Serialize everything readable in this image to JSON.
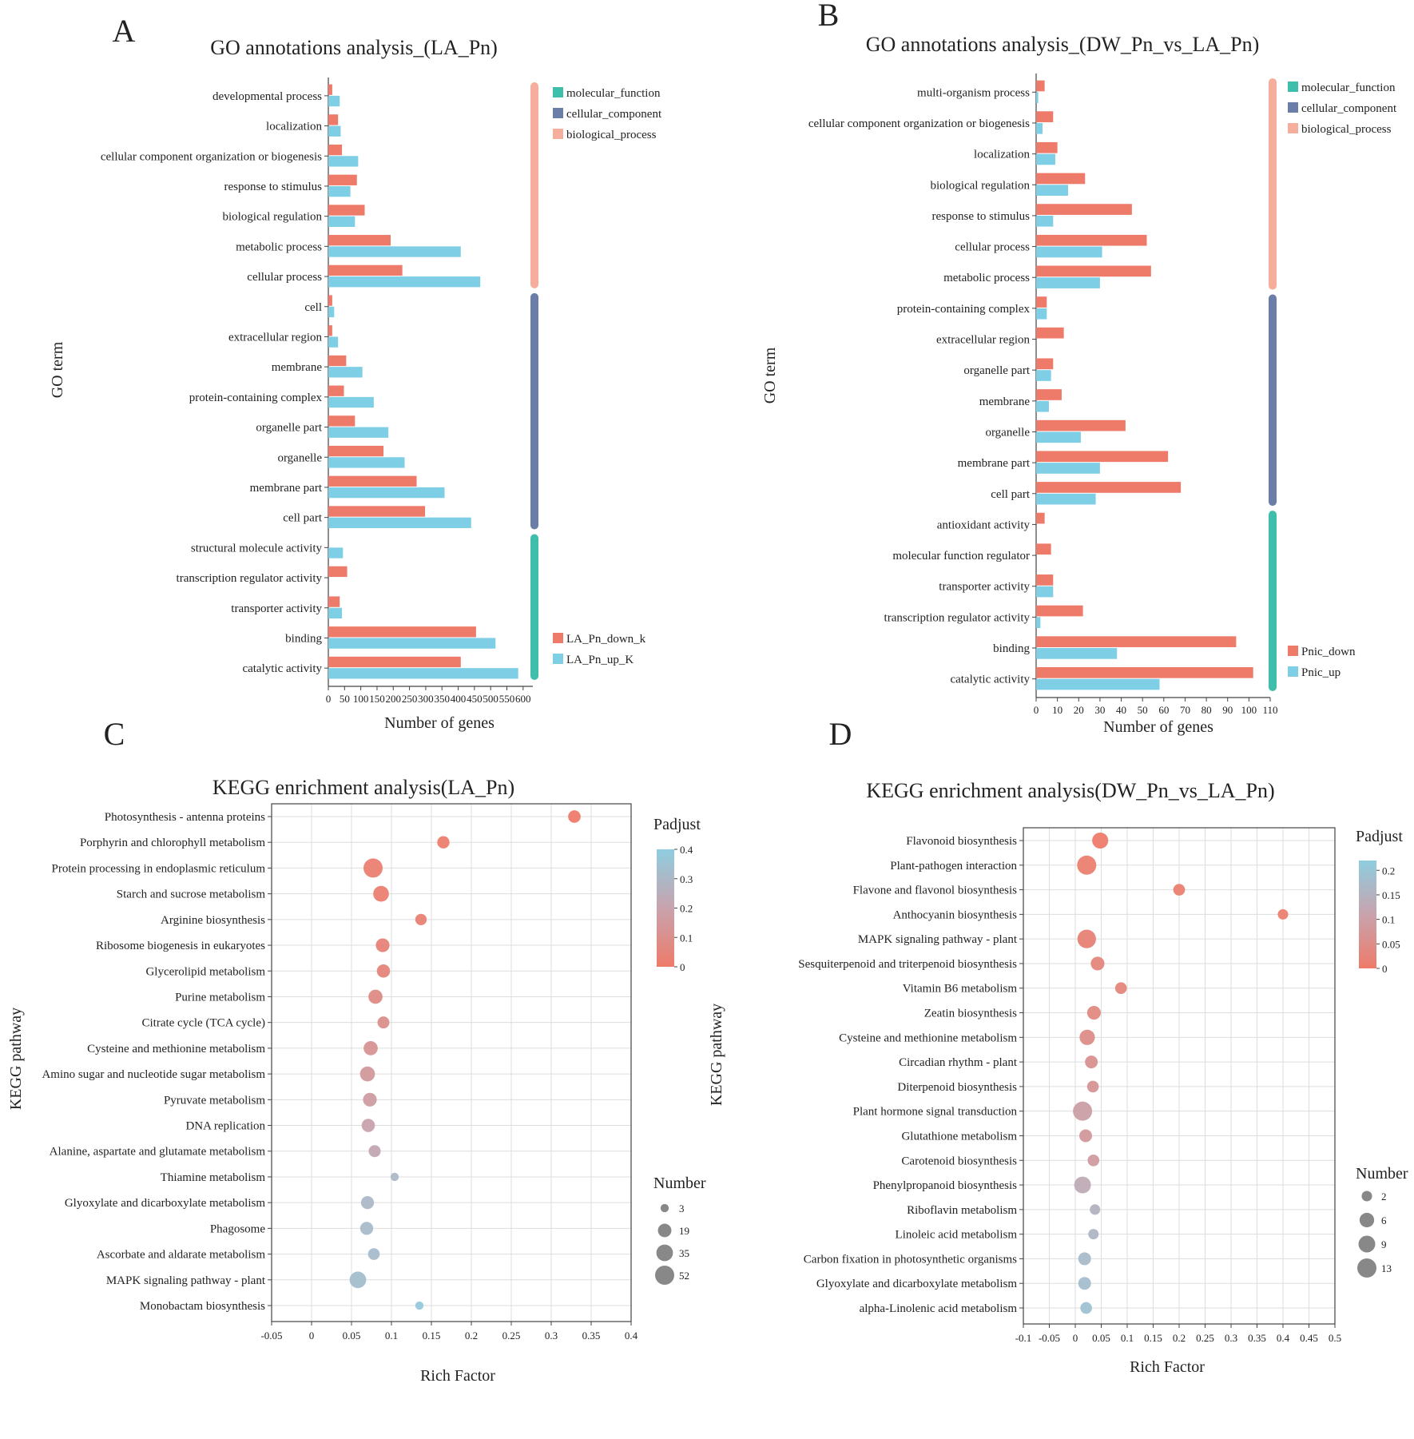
{
  "figure": {
    "background": "#ffffff"
  },
  "colors": {
    "down": "#ee7b6a",
    "up": "#7ecfe6",
    "molecular_function": "#3fbfab",
    "cellular_component": "#6b7ea8",
    "biological_process": "#f5ae9c",
    "grid": "#dddddd",
    "axis": "#444444",
    "gradient_low": "#ee7b6a",
    "gradient_mid": "#c8a3ad",
    "gradient_high": "#8fcde0"
  },
  "chart_data": [
    {
      "panel": "A",
      "type": "bar",
      "title": "GO annotations analysis_(LA_Pn)",
      "ylabel": "GO term",
      "xlabel": "Number of genes",
      "xlim": [
        0,
        630
      ],
      "xticks": [
        0,
        50,
        100,
        150,
        200,
        250,
        300,
        350,
        400,
        450,
        500,
        550,
        600
      ],
      "categories": [
        "developmental process",
        "localization",
        "cellular component organization or biogenesis",
        "response to stimulus",
        "biological regulation",
        "metabolic process",
        "cellular process",
        "cell",
        "extracellular region",
        "membrane",
        "protein-containing complex",
        "organelle part",
        "organelle",
        "membrane part",
        "cell part",
        "structural molecule activity",
        "transcription regulator activity",
        "transporter activity",
        "binding",
        "catalytic activity"
      ],
      "groups": [
        {
          "name": "biological_process",
          "start": 0,
          "end": 6
        },
        {
          "name": "cellular_component",
          "start": 7,
          "end": 14
        },
        {
          "name": "molecular_function",
          "start": 15,
          "end": 19
        }
      ],
      "group_legend": [
        "molecular_function",
        "cellular_component",
        "biological_process"
      ],
      "series": [
        {
          "name": "LA_Pn_down_k",
          "key": "down",
          "values": [
            12,
            30,
            42,
            88,
            112,
            192,
            228,
            12,
            12,
            55,
            48,
            82,
            170,
            272,
            298,
            0,
            58,
            35,
            455,
            408
          ]
        },
        {
          "name": "LA_Pn_up_K",
          "key": "up",
          "values": [
            35,
            38,
            92,
            68,
            82,
            408,
            468,
            18,
            30,
            105,
            140,
            185,
            235,
            358,
            440,
            45,
            0,
            42,
            515,
            585
          ]
        }
      ]
    },
    {
      "panel": "B",
      "type": "bar",
      "title": "GO annotations analysis_(DW_Pn_vs_LA_Pn)",
      "ylabel": "GO term",
      "xlabel": "Number of genes",
      "xlim": [
        0,
        110
      ],
      "xticks": [
        0,
        10,
        20,
        30,
        40,
        50,
        60,
        70,
        80,
        90,
        100,
        110
      ],
      "categories": [
        "multi-organism process",
        "cellular component organization or biogenesis",
        "localization",
        "biological regulation",
        "response to stimulus",
        "cellular process",
        "metabolic process",
        "protein-containing complex",
        "extracellular region",
        "organelle part",
        "membrane",
        "organelle",
        "membrane part",
        "cell part",
        "antioxidant activity",
        "molecular function regulator",
        "transporter activity",
        "transcription regulator activity",
        "binding",
        "catalytic activity"
      ],
      "groups": [
        {
          "name": "biological_process",
          "start": 0,
          "end": 6
        },
        {
          "name": "cellular_component",
          "start": 7,
          "end": 13
        },
        {
          "name": "molecular_function",
          "start": 14,
          "end": 19
        }
      ],
      "group_legend": [
        "molecular_function",
        "cellular_component",
        "biological_process"
      ],
      "series": [
        {
          "name": "Pnic_down",
          "key": "down",
          "values": [
            4,
            8,
            10,
            23,
            45,
            52,
            54,
            5,
            13,
            8,
            12,
            42,
            62,
            68,
            4,
            7,
            8,
            22,
            94,
            102
          ]
        },
        {
          "name": "Pnic_up",
          "key": "up",
          "values": [
            1,
            3,
            9,
            15,
            8,
            31,
            30,
            5,
            0,
            7,
            6,
            21,
            30,
            28,
            0,
            0,
            8,
            2,
            38,
            58
          ]
        }
      ]
    },
    {
      "panel": "C",
      "type": "scatter",
      "title": "KEGG enrichment analysis(LA_Pn)",
      "ylabel": "KEGG pathway",
      "xlabel": "Rich Factor",
      "xlim": [
        -0.05,
        0.4
      ],
      "xticks": [
        -0.05,
        0,
        0.05,
        0.1,
        0.15,
        0.2,
        0.25,
        0.3,
        0.35,
        0.4
      ],
      "color_title": "Padjust",
      "color_range": [
        0,
        0.4
      ],
      "color_ticks": [
        0,
        0.1,
        0.2,
        0.3,
        0.4
      ],
      "size_title": "Number",
      "size_legend": [
        3,
        19,
        35,
        52
      ],
      "categories": [
        "Photosynthesis - antenna proteins",
        "Porphyrin and chlorophyll metabolism",
        "Protein processing in endoplasmic reticulum",
        "Starch and sucrose metabolism",
        "Arginine biosynthesis",
        "Ribosome biogenesis in eukaryotes",
        "Glycerolipid metabolism",
        "Purine metabolism",
        "Citrate cycle (TCA cycle)",
        "Cysteine and methionine metabolism",
        "Amino sugar and nucleotide sugar metabolism",
        "Pyruvate metabolism",
        "DNA replication",
        "Alanine, aspartate and glutamate metabolism",
        "Thiamine metabolism",
        "Glyoxylate and dicarboxylate metabolism",
        "Phagosome",
        "Ascorbate and aldarate metabolism",
        "MAPK signaling pathway - plant",
        "Monobactam biosynthesis"
      ],
      "rich_factor": [
        0.329,
        0.165,
        0.077,
        0.087,
        0.137,
        0.089,
        0.09,
        0.08,
        0.09,
        0.074,
        0.07,
        0.073,
        0.071,
        0.079,
        0.104,
        0.07,
        0.069,
        0.078,
        0.058,
        0.135
      ],
      "padjust": [
        0.0,
        0.01,
        0.02,
        0.02,
        0.03,
        0.04,
        0.05,
        0.08,
        0.1,
        0.12,
        0.15,
        0.17,
        0.2,
        0.22,
        0.3,
        0.3,
        0.31,
        0.32,
        0.33,
        0.38
      ],
      "number": [
        15,
        14,
        52,
        30,
        11,
        20,
        18,
        22,
        13,
        22,
        26,
        20,
        18,
        13,
        3,
        17,
        17,
        12,
        35,
        3
      ]
    },
    {
      "panel": "D",
      "type": "scatter",
      "title": "KEGG enrichment analysis(DW_Pn_vs_LA_Pn)",
      "ylabel": "KEGG pathway",
      "xlabel": "Rich Factor",
      "xlim": [
        -0.1,
        0.5
      ],
      "xticks": [
        -0.1,
        -0.05,
        0,
        0.05,
        0.1,
        0.15,
        0.2,
        0.25,
        0.3,
        0.35,
        0.4,
        0.45,
        0.5
      ],
      "color_title": "Padjust",
      "color_range": [
        0,
        0.22
      ],
      "color_ticks": [
        0,
        0.05,
        0.1,
        0.15,
        0.2
      ],
      "size_title": "Number",
      "size_legend": [
        2,
        6,
        9,
        13
      ],
      "categories": [
        "Flavonoid biosynthesis",
        "Plant-pathogen interaction",
        "Flavone and flavonol biosynthesis",
        "Anthocyanin biosynthesis",
        "MAPK signaling pathway - plant",
        "Sesquiterpenoid and triterpenoid biosynthesis",
        "Vitamin B6 metabolism",
        "Zeatin biosynthesis",
        "Cysteine and methionine metabolism",
        "Circadian rhythm - plant",
        "Diterpenoid biosynthesis",
        "Plant hormone signal transduction",
        "Glutathione metabolism",
        "Carotenoid biosynthesis",
        "Phenylpropanoid biosynthesis",
        "Riboflavin metabolism",
        "Linoleic acid metabolism",
        "Carbon fixation in photosynthetic organisms",
        "Glyoxylate and dicarboxylate metabolism",
        "alpha-Linolenic acid metabolism"
      ],
      "rich_factor": [
        0.048,
        0.022,
        0.2,
        0.4,
        0.022,
        0.043,
        0.088,
        0.036,
        0.023,
        0.031,
        0.034,
        0.014,
        0.02,
        0.035,
        0.014,
        0.038,
        0.035,
        0.018,
        0.018,
        0.021
      ],
      "padjust": [
        0.0,
        0.01,
        0.01,
        0.01,
        0.02,
        0.03,
        0.03,
        0.04,
        0.05,
        0.06,
        0.07,
        0.1,
        0.08,
        0.09,
        0.13,
        0.15,
        0.16,
        0.17,
        0.18,
        0.19
      ],
      "number": [
        8,
        13,
        3,
        2,
        12,
        5,
        3,
        5,
        7,
        4,
        3,
        13,
        4,
        3,
        9,
        2,
        2,
        4,
        4,
        3
      ]
    }
  ]
}
